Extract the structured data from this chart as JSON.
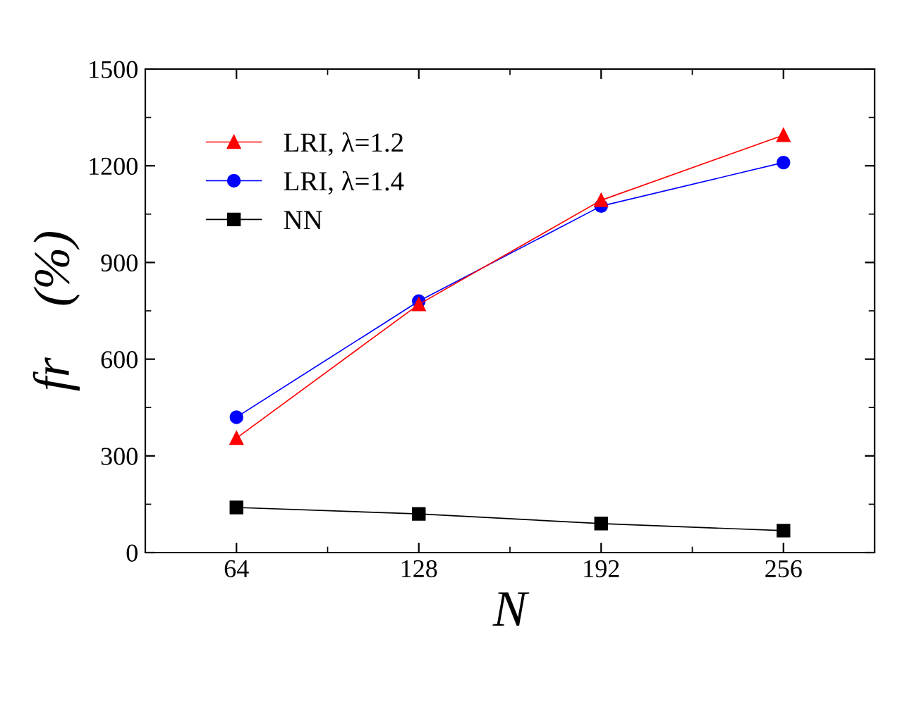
{
  "chart_data": {
    "type": "line",
    "xlabel": "N",
    "ylabel": "fr    (%)",
    "x": [
      64,
      128,
      192,
      256
    ],
    "series": [
      {
        "name": "LRI, λ=1.2",
        "color": "#ff0000",
        "marker": "triangle",
        "values": [
          355,
          770,
          1093,
          1295
        ]
      },
      {
        "name": "LRI, λ=1.4",
        "color": "#0000ff",
        "marker": "circle",
        "values": [
          420,
          780,
          1075,
          1210
        ]
      },
      {
        "name": "NN",
        "color": "#000000",
        "marker": "square",
        "values": [
          140,
          120,
          90,
          68
        ]
      }
    ],
    "xlim": [
      32,
      288
    ],
    "xticks": [
      64,
      128,
      192,
      256
    ],
    "ylim": [
      0,
      1500
    ],
    "yticks": [
      0,
      300,
      600,
      900,
      1200,
      1500
    ],
    "grid": false,
    "legend": "top left",
    "line_style": "solid"
  }
}
